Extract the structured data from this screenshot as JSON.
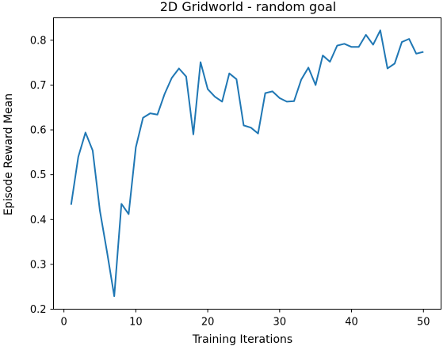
{
  "chart_data": {
    "type": "line",
    "title": "2D Gridworld - random goal",
    "xlabel": "Training Iterations",
    "ylabel": "Episode Reward Mean",
    "xlim": [
      -1.45,
      52.45
    ],
    "ylim": [
      0.2,
      0.85
    ],
    "xticks": [
      0,
      10,
      20,
      30,
      40,
      50
    ],
    "yticks": [
      0.2,
      0.3,
      0.4,
      0.5,
      0.6,
      0.7,
      0.8
    ],
    "grid": false,
    "line_color": "#1f77b4",
    "series": [
      {
        "x": [
          1,
          2,
          3,
          4,
          5,
          6,
          7,
          8,
          9,
          10,
          11,
          12,
          13,
          14,
          15,
          16,
          17,
          18,
          19,
          20,
          21,
          22,
          23,
          24,
          25,
          26,
          27,
          28,
          29,
          30,
          31,
          32,
          33,
          34,
          35,
          36,
          37,
          38,
          39,
          40,
          41,
          42,
          43,
          44,
          45,
          46,
          47,
          48,
          49,
          50
        ],
        "values": [
          0.433,
          0.54,
          0.594,
          0.554,
          0.42,
          0.327,
          0.229,
          0.435,
          0.412,
          0.561,
          0.627,
          0.637,
          0.634,
          0.68,
          0.716,
          0.737,
          0.719,
          0.59,
          0.751,
          0.691,
          0.674,
          0.663,
          0.726,
          0.713,
          0.61,
          0.605,
          0.592,
          0.682,
          0.686,
          0.671,
          0.663,
          0.664,
          0.712,
          0.739,
          0.7,
          0.766,
          0.752,
          0.788,
          0.792,
          0.785,
          0.785,
          0.812,
          0.79,
          0.822,
          0.737,
          0.748,
          0.796,
          0.803,
          0.77,
          0.774
        ]
      }
    ]
  }
}
